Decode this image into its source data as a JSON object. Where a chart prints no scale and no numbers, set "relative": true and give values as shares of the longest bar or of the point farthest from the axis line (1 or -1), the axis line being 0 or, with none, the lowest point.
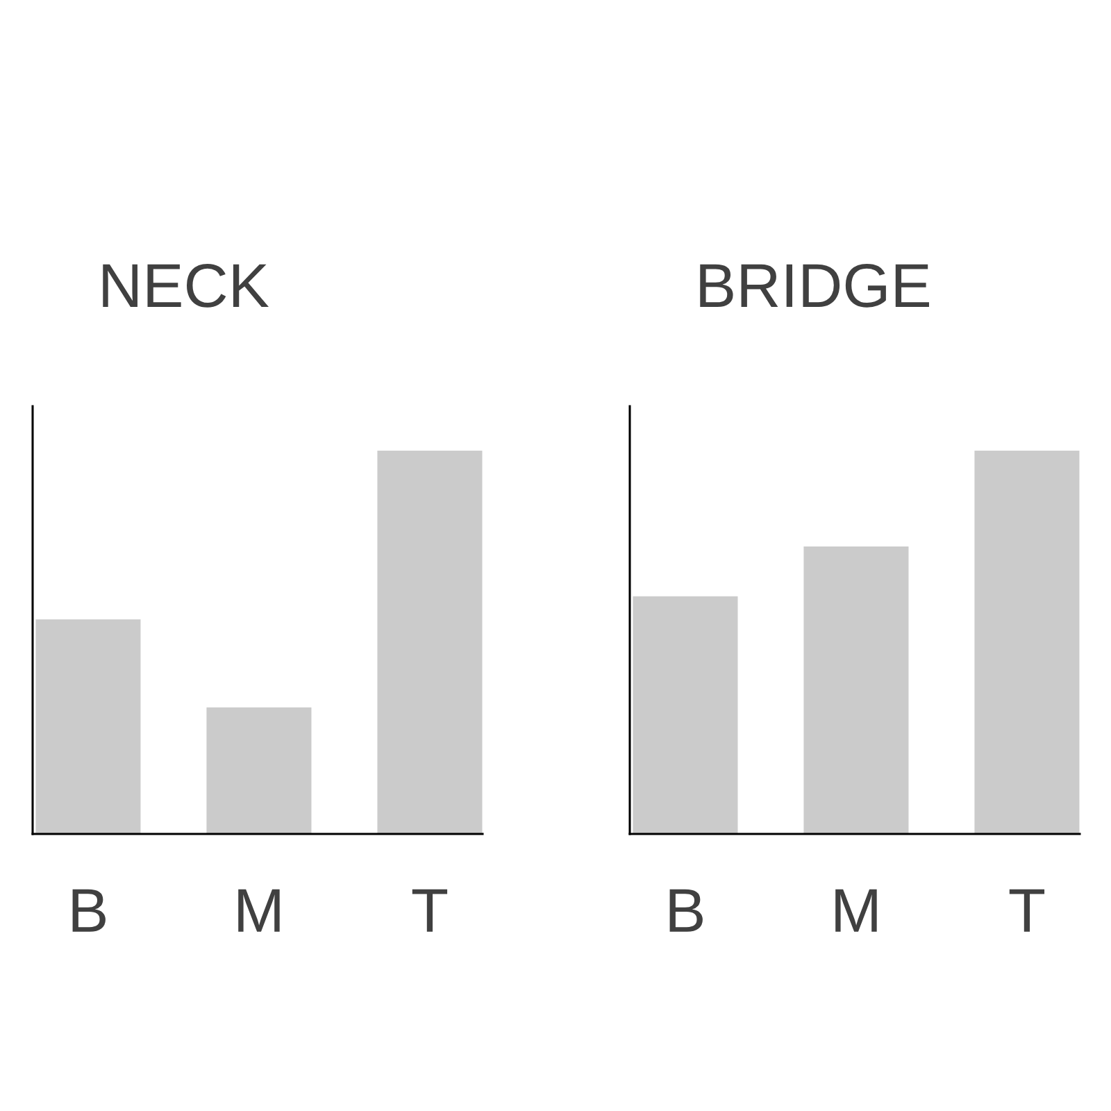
{
  "chart_data": [
    {
      "type": "bar",
      "title": "NECK",
      "categories": [
        "B",
        "M",
        "T"
      ],
      "values": [
        0.56,
        0.33,
        1
      ],
      "color": "#cbcbcb",
      "relative": true
    },
    {
      "type": "bar",
      "title": "BRIDGE",
      "categories": [
        "B",
        "M",
        "T"
      ],
      "values": [
        0.62,
        0.75,
        1
      ],
      "color": "#cbcbcb",
      "relative": true
    }
  ]
}
